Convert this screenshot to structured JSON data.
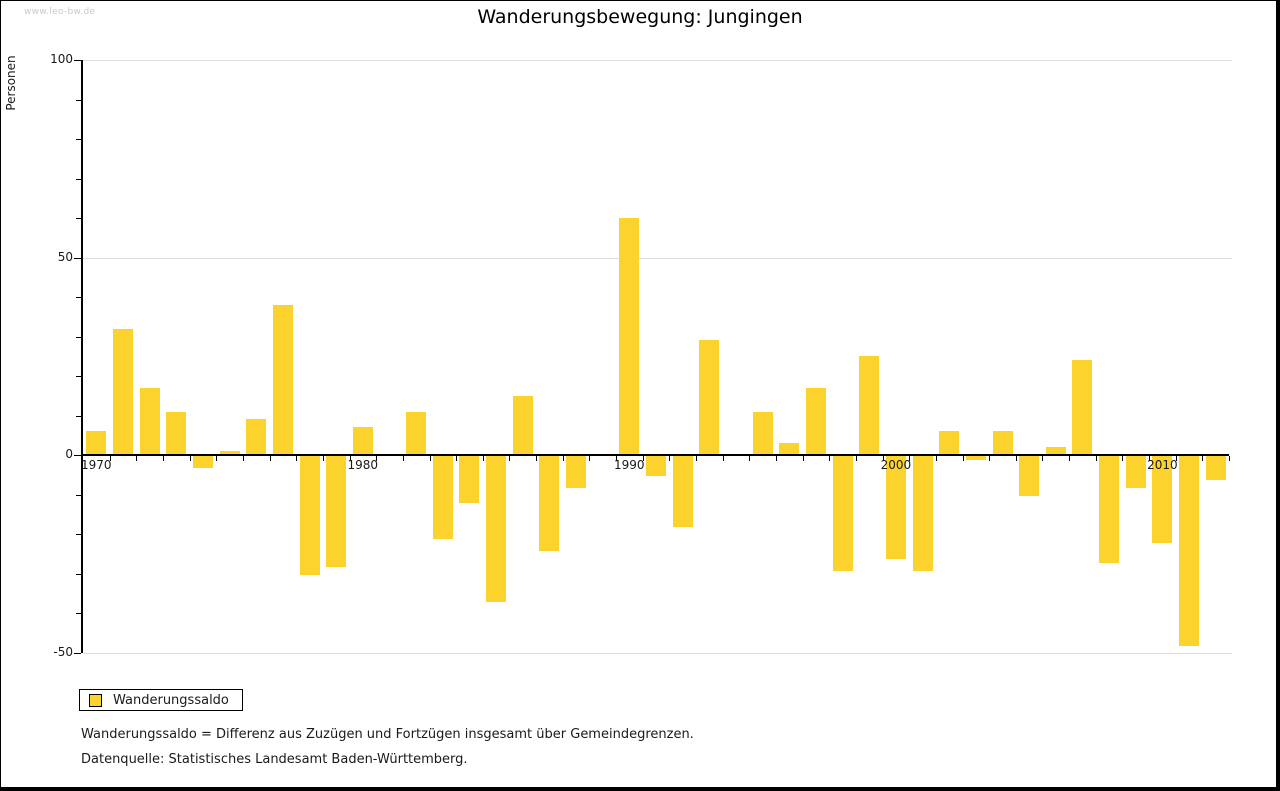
{
  "watermark": "www.leo-bw.de",
  "title": "Wanderungsbewegung: Jungingen",
  "y_axis_label": "Personen",
  "legend": {
    "label": "Wanderungssaldo"
  },
  "footnotes": [
    "Wanderungssaldo = Differenz aus Zuzügen und Fortzügen insgesamt über Gemeindegrenzen.",
    "Datenquelle: Statistisches Landesamt Baden-Württemberg."
  ],
  "colors": {
    "bar": "#FCD32D",
    "grid": "#DEDEDE",
    "axis": "#000000",
    "text": "#1A1A1A",
    "watermark": "#C9C9C9"
  },
  "chart_data": {
    "type": "bar",
    "title": "Wanderungsbewegung: Jungingen",
    "xlabel": "",
    "ylabel": "Personen",
    "ylim": [
      -50,
      100
    ],
    "grid": "horizontal-major",
    "legend_position": "bottom-left",
    "y_major_ticks": [
      100,
      50,
      0,
      -50
    ],
    "y_minor_step": 10,
    "x_labeled_years": [
      1970,
      1980,
      1990,
      2000,
      2010
    ],
    "categories": [
      1970,
      1971,
      1972,
      1973,
      1974,
      1975,
      1976,
      1977,
      1978,
      1979,
      1980,
      1981,
      1982,
      1983,
      1984,
      1985,
      1986,
      1987,
      1988,
      1989,
      1990,
      1991,
      1992,
      1993,
      1994,
      1995,
      1996,
      1997,
      1998,
      1999,
      2000,
      2001,
      2002,
      2003,
      2004,
      2005,
      2006,
      2007,
      2008,
      2009,
      2010,
      2011,
      2012
    ],
    "series": [
      {
        "name": "Wanderungssaldo",
        "values": [
          6,
          32,
          17,
          11,
          -3,
          1,
          9,
          38,
          -30,
          -28,
          7,
          0,
          11,
          -21,
          -12,
          -37,
          15,
          -24,
          -8,
          0,
          60,
          -5,
          -18,
          29,
          0,
          11,
          3,
          17,
          -29,
          25,
          -26,
          -29,
          6,
          -1,
          6,
          -10,
          2,
          24,
          -27,
          -8,
          -22,
          -48,
          -6
        ]
      }
    ]
  }
}
